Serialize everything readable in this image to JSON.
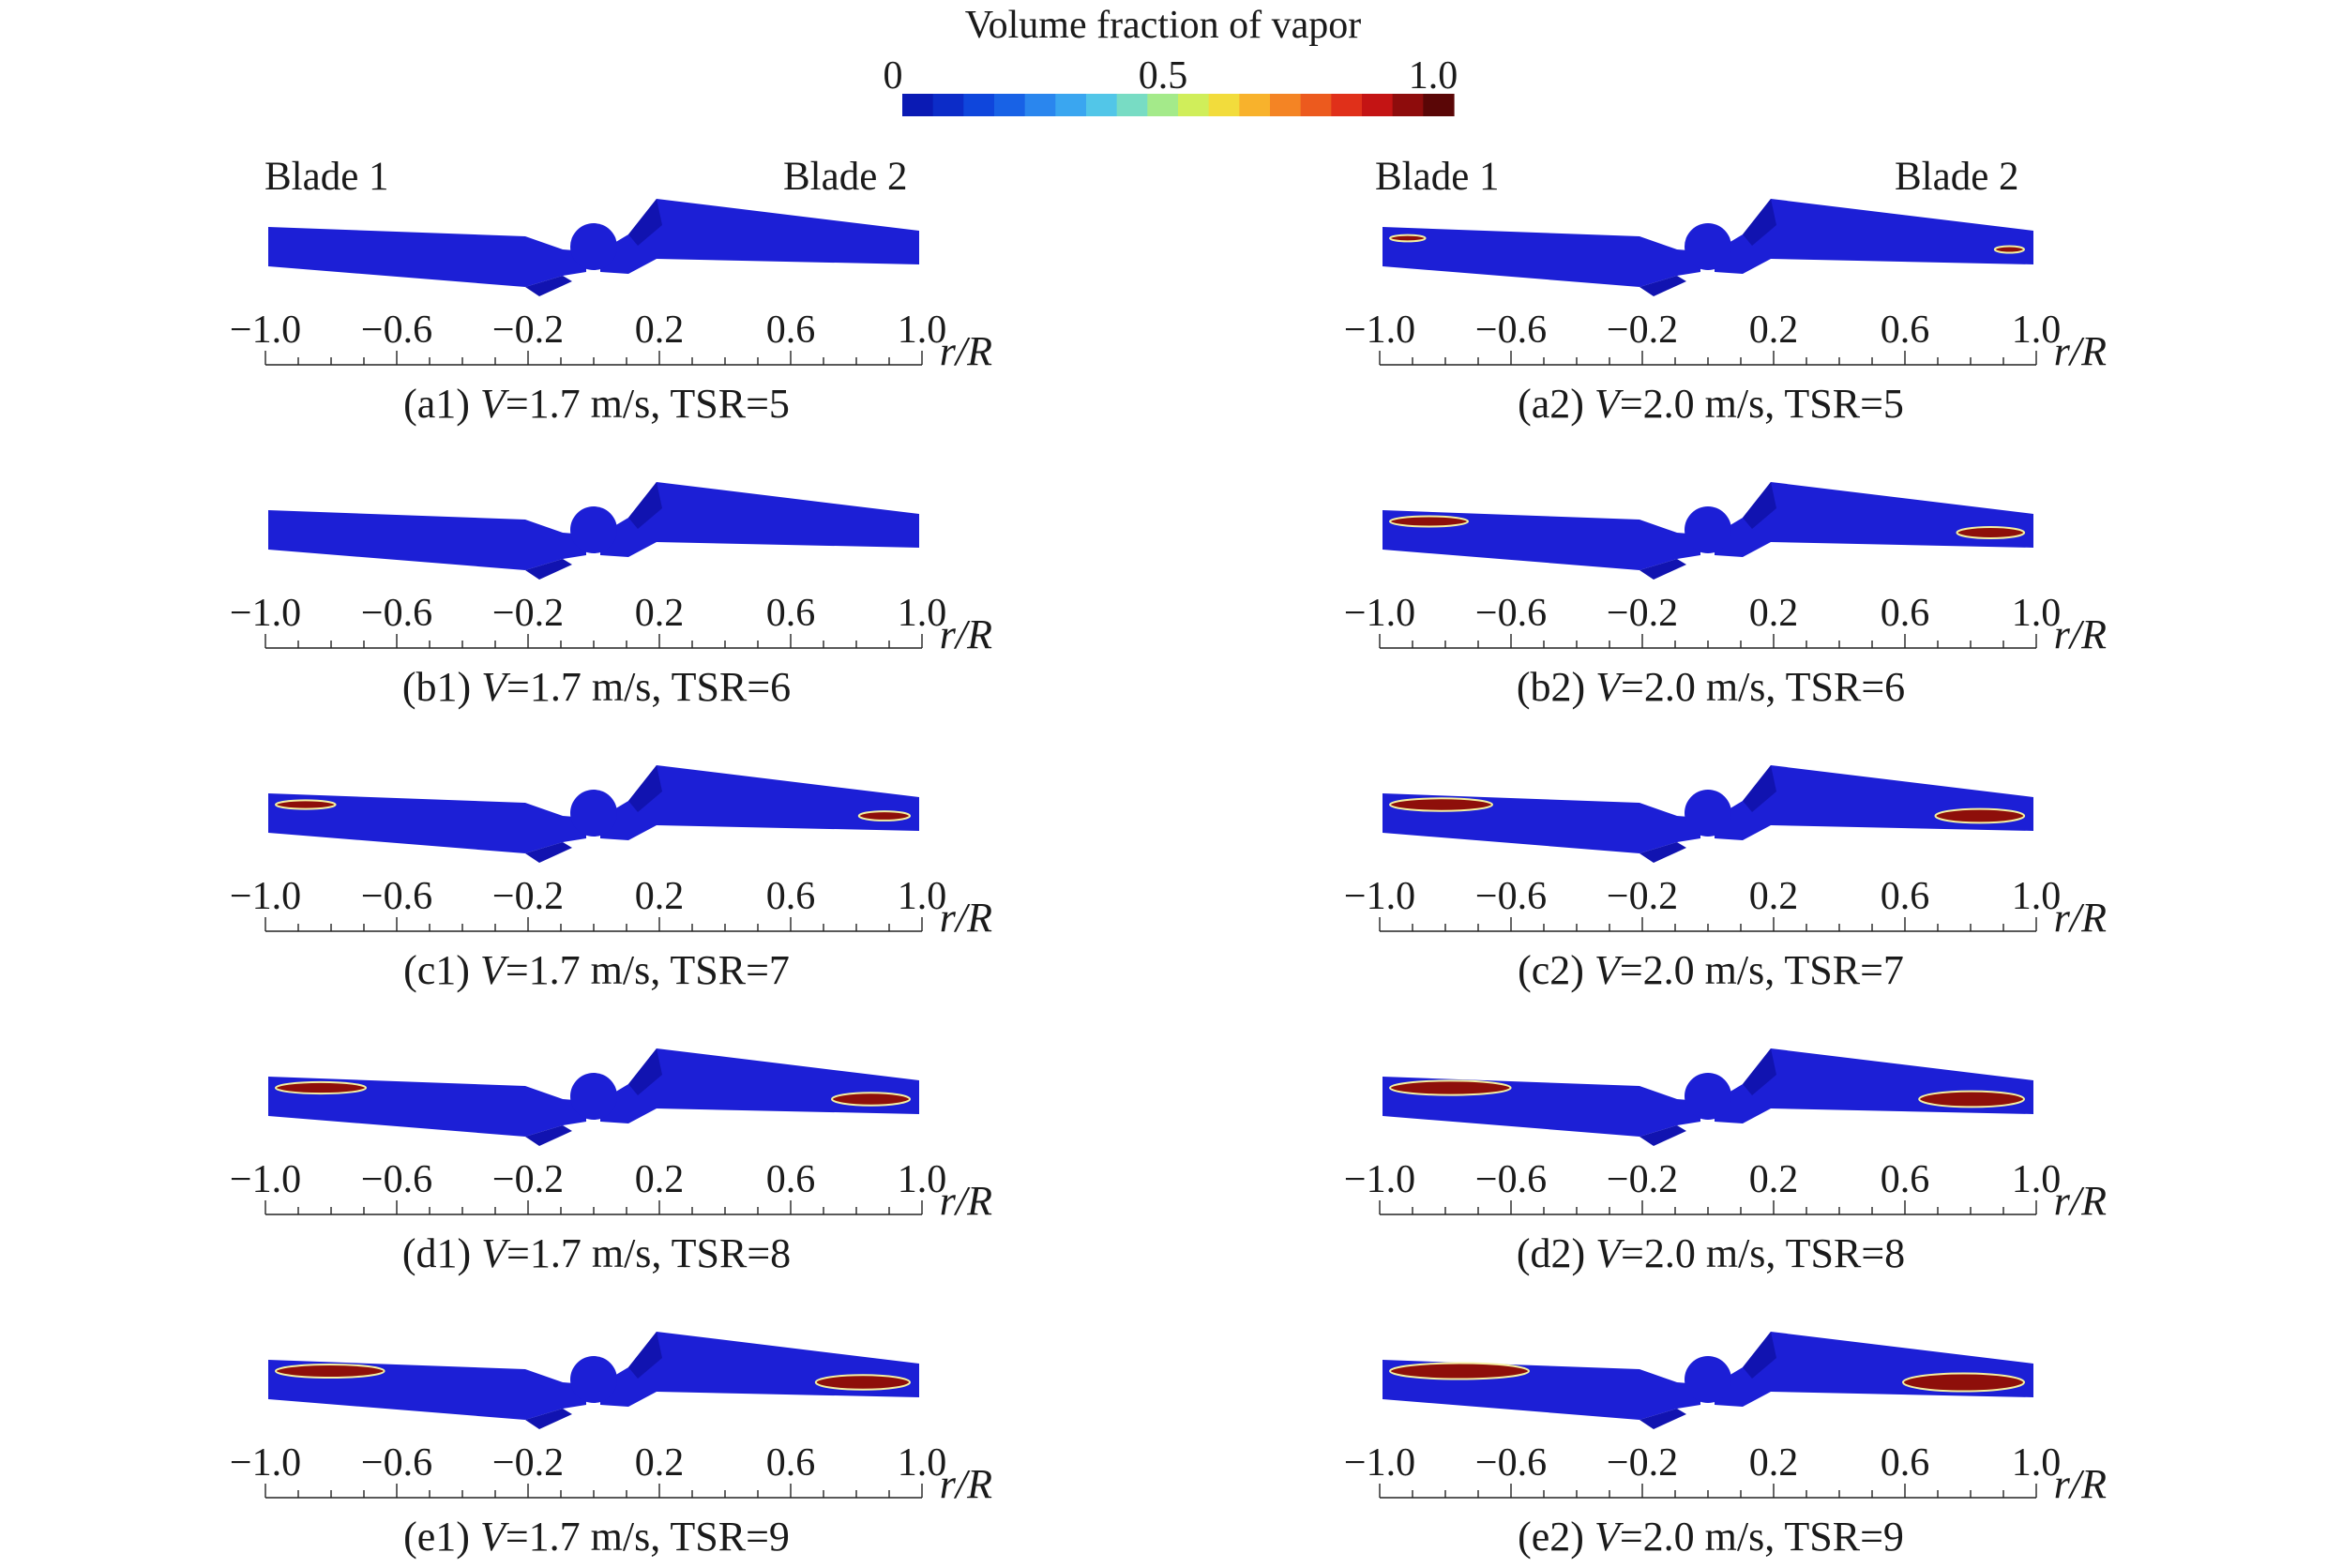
{
  "colorbar": {
    "title": "Volume fraction of vapor",
    "min_label": "0",
    "mid_label": "0.5",
    "max_label": "1.0",
    "colors": [
      "#0a1ab4",
      "#0c2cc8",
      "#0f46dc",
      "#1862e6",
      "#2a86ee",
      "#3aa6f0",
      "#52c6e8",
      "#78dcc4",
      "#a4ea8a",
      "#d0ee5a",
      "#f2dc3c",
      "#f8b22c",
      "#f48424",
      "#ec5a1e",
      "#e0301a",
      "#c41414",
      "#8e0c0c",
      "#5a0606"
    ]
  },
  "colors": {
    "blade": "#1c1fd6",
    "blade_dark": "#1113b0",
    "vapor": "#8e0f0a",
    "vapor_edge": "#f4f0a0"
  },
  "blade_labels": {
    "left": "Blade 1",
    "right": "Blade 2"
  },
  "axis": {
    "variable": "r/R",
    "ticks": [
      "−1.0",
      "−0.6",
      "−0.2",
      "0.2",
      "0.6",
      "1.0"
    ]
  },
  "panels": [
    {
      "id": "a1",
      "col": 0,
      "row": 0,
      "vapor": 0.0,
      "caption": {
        "pre": "(a1) ",
        "var": "V",
        "post": "=1.7 m/s, TSR=5"
      }
    },
    {
      "id": "b1",
      "col": 0,
      "row": 1,
      "vapor": 0.0,
      "caption": {
        "pre": "(b1) ",
        "var": "V",
        "post": "=1.7 m/s, TSR=6"
      }
    },
    {
      "id": "c1",
      "col": 0,
      "row": 2,
      "vapor": 0.35,
      "caption": {
        "pre": "(c1) ",
        "var": "V",
        "post": "=1.7 m/s, TSR=7"
      }
    },
    {
      "id": "d1",
      "col": 0,
      "row": 3,
      "vapor": 0.6,
      "caption": {
        "pre": "(d1) ",
        "var": "V",
        "post": "=1.7 m/s, TSR=8"
      }
    },
    {
      "id": "e1",
      "col": 0,
      "row": 4,
      "vapor": 0.75,
      "caption": {
        "pre": "(e1) ",
        "var": "V",
        "post": "=1.7 m/s, TSR=9"
      }
    },
    {
      "id": "a2",
      "col": 1,
      "row": 0,
      "vapor": 0.15,
      "caption": {
        "pre": "(a2) ",
        "var": "V",
        "post": "=2.0 m/s, TSR=5"
      }
    },
    {
      "id": "b2",
      "col": 1,
      "row": 1,
      "vapor": 0.5,
      "caption": {
        "pre": "(b2) ",
        "var": "V",
        "post": "=2.0 m/s, TSR=6"
      }
    },
    {
      "id": "c2",
      "col": 1,
      "row": 2,
      "vapor": 0.7,
      "caption": {
        "pre": "(c2) ",
        "var": "V",
        "post": "=2.0 m/s, TSR=7"
      }
    },
    {
      "id": "d2",
      "col": 1,
      "row": 3,
      "vapor": 0.85,
      "caption": {
        "pre": "(d2) ",
        "var": "V",
        "post": "=2.0 m/s, TSR=8"
      }
    },
    {
      "id": "e2",
      "col": 1,
      "row": 4,
      "vapor": 1.0,
      "caption": {
        "pre": "(e2) ",
        "var": "V",
        "post": "=2.0 m/s, TSR=9"
      }
    }
  ]
}
